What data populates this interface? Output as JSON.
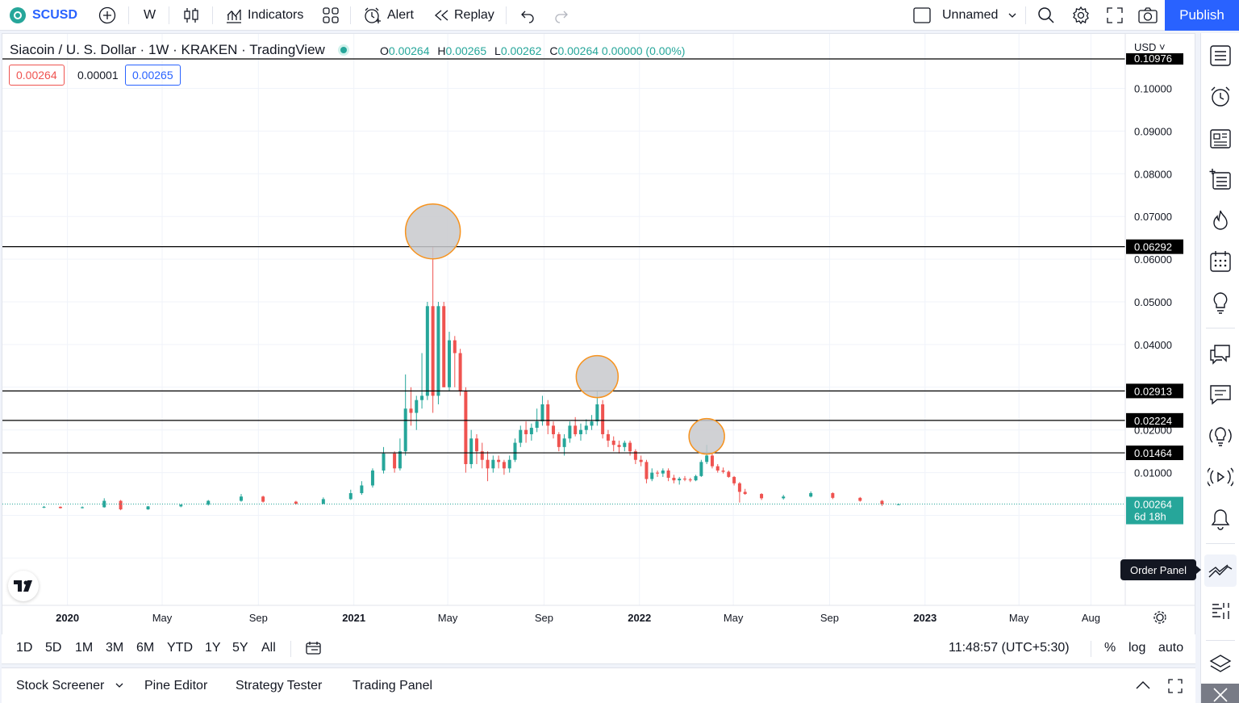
{
  "toolbar": {
    "symbol": "SCUSD",
    "interval": "W",
    "indicators_label": "Indicators",
    "alert_label": "Alert",
    "replay_label": "Replay",
    "layout_name": "Unnamed",
    "publish_label": "Publish"
  },
  "legend": {
    "title": "Siacoin / U. S. Dollar · 1W · KRAKEN · TradingView",
    "o_key": "O",
    "o_val": "0.00264",
    "h_key": "H",
    "h_val": "0.00265",
    "l_key": "L",
    "l_val": "0.00262",
    "c_key": "C",
    "c_val": "0.00264 0.00000 (0.00%)",
    "sell_price": "0.00264",
    "spread": "0.00001",
    "buy_price": "0.00265"
  },
  "price_scale": {
    "currency": "USD",
    "top_partial": "0.10976",
    "ticks": [
      "0.10000",
      "0.09000",
      "0.08000",
      "0.07000",
      "0.06000",
      "0.05000",
      "0.04000",
      "0.02000",
      "0.01000"
    ],
    "hline_labels": [
      "0.06292",
      "0.02913",
      "0.02224",
      "0.01464"
    ],
    "last_price": "0.00264",
    "countdown": "6d 18h"
  },
  "time_scale": {
    "labels": [
      "2020",
      "May",
      "Sep",
      "2021",
      "May",
      "Sep",
      "2022",
      "May",
      "Sep",
      "2023",
      "May",
      "Aug"
    ]
  },
  "ranges": {
    "buttons": [
      "1D",
      "5D",
      "1M",
      "3M",
      "6M",
      "YTD",
      "1Y",
      "5Y",
      "All"
    ],
    "clock": "11:48:57 (UTC+5:30)",
    "percent": "%",
    "log": "log",
    "auto": "auto"
  },
  "bottom_tabs": [
    "Stock Screener",
    "Pine Editor",
    "Strategy Tester",
    "Trading Panel"
  ],
  "tooltip": "Order Panel",
  "colors": {
    "up": "#26a69a",
    "down": "#ef5350",
    "accent": "#2962ff",
    "highlight_fill": "#c8c9cc",
    "highlight_stroke": "#f7931e"
  },
  "chart_data": {
    "type": "candlestick",
    "title": "Siacoin / U. S. Dollar · 1W · KRAKEN · TradingView",
    "ylim": [
      0,
      0.10976
    ],
    "x_range": [
      "2019-10",
      "2023-09"
    ],
    "horizontal_lines": [
      0.06292,
      0.02913,
      0.02224,
      0.01464
    ],
    "last_price": 0.00264,
    "highlights": [
      {
        "date": "2021-04-12",
        "price": 0.0665
      },
      {
        "date": "2021-11-08",
        "price": 0.0325
      },
      {
        "date": "2022-03-28",
        "price": 0.0185
      }
    ],
    "candles": [
      {
        "d": "2019-12-02",
        "o": 0.0019,
        "h": 0.0022,
        "l": 0.0017,
        "c": 0.002
      },
      {
        "d": "2019-12-23",
        "o": 0.002,
        "h": 0.0021,
        "l": 0.0016,
        "c": 0.0017
      },
      {
        "d": "2020-01-20",
        "o": 0.0017,
        "h": 0.0021,
        "l": 0.0016,
        "c": 0.0019
      },
      {
        "d": "2020-02-17",
        "o": 0.0019,
        "h": 0.004,
        "l": 0.0018,
        "c": 0.0034
      },
      {
        "d": "2020-03-09",
        "o": 0.0034,
        "h": 0.0036,
        "l": 0.0012,
        "c": 0.0014
      },
      {
        "d": "2020-04-13",
        "o": 0.0014,
        "h": 0.0022,
        "l": 0.0013,
        "c": 0.0021
      },
      {
        "d": "2020-05-25",
        "o": 0.0021,
        "h": 0.0026,
        "l": 0.0019,
        "c": 0.0025
      },
      {
        "d": "2020-06-29",
        "o": 0.0025,
        "h": 0.0036,
        "l": 0.0023,
        "c": 0.0034
      },
      {
        "d": "2020-08-10",
        "o": 0.0034,
        "h": 0.005,
        "l": 0.0032,
        "c": 0.0044
      },
      {
        "d": "2020-09-07",
        "o": 0.0044,
        "h": 0.0046,
        "l": 0.003,
        "c": 0.0032
      },
      {
        "d": "2020-10-19",
        "o": 0.0032,
        "h": 0.0034,
        "l": 0.0025,
        "c": 0.0027
      },
      {
        "d": "2020-11-23",
        "o": 0.0027,
        "h": 0.0042,
        "l": 0.0026,
        "c": 0.0038
      },
      {
        "d": "2020-12-28",
        "o": 0.0038,
        "h": 0.006,
        "l": 0.0036,
        "c": 0.0052
      },
      {
        "d": "2021-01-11",
        "o": 0.0052,
        "h": 0.008,
        "l": 0.0048,
        "c": 0.007
      },
      {
        "d": "2021-01-25",
        "o": 0.007,
        "h": 0.011,
        "l": 0.0065,
        "c": 0.0105
      },
      {
        "d": "2021-02-08",
        "o": 0.0105,
        "h": 0.016,
        "l": 0.0098,
        "c": 0.0145
      },
      {
        "d": "2021-02-22",
        "o": 0.0145,
        "h": 0.015,
        "l": 0.01,
        "c": 0.011
      },
      {
        "d": "2021-03-01",
        "o": 0.011,
        "h": 0.018,
        "l": 0.0105,
        "c": 0.015
      },
      {
        "d": "2021-03-08",
        "o": 0.015,
        "h": 0.033,
        "l": 0.014,
        "c": 0.025
      },
      {
        "d": "2021-03-15",
        "o": 0.025,
        "h": 0.03,
        "l": 0.021,
        "c": 0.024
      },
      {
        "d": "2021-03-22",
        "o": 0.024,
        "h": 0.028,
        "l": 0.02,
        "c": 0.027
      },
      {
        "d": "2021-03-29",
        "o": 0.027,
        "h": 0.038,
        "l": 0.025,
        "c": 0.028
      },
      {
        "d": "2021-04-05",
        "o": 0.028,
        "h": 0.05,
        "l": 0.027,
        "c": 0.049
      },
      {
        "d": "2021-04-12",
        "o": 0.049,
        "h": 0.0629,
        "l": 0.024,
        "c": 0.028
      },
      {
        "d": "2021-04-19",
        "o": 0.028,
        "h": 0.05,
        "l": 0.026,
        "c": 0.049
      },
      {
        "d": "2021-04-26",
        "o": 0.049,
        "h": 0.05,
        "l": 0.03,
        "c": 0.03
      },
      {
        "d": "2021-05-03",
        "o": 0.03,
        "h": 0.043,
        "l": 0.029,
        "c": 0.041
      },
      {
        "d": "2021-05-10",
        "o": 0.041,
        "h": 0.042,
        "l": 0.03,
        "c": 0.038
      },
      {
        "d": "2021-05-17",
        "o": 0.038,
        "h": 0.039,
        "l": 0.028,
        "c": 0.029
      },
      {
        "d": "2021-05-24",
        "o": 0.029,
        "h": 0.03,
        "l": 0.01,
        "c": 0.012
      },
      {
        "d": "2021-05-31",
        "o": 0.012,
        "h": 0.02,
        "l": 0.011,
        "c": 0.018
      },
      {
        "d": "2021-06-07",
        "o": 0.018,
        "h": 0.019,
        "l": 0.012,
        "c": 0.015
      },
      {
        "d": "2021-06-14",
        "o": 0.015,
        "h": 0.017,
        "l": 0.011,
        "c": 0.013
      },
      {
        "d": "2021-06-21",
        "o": 0.013,
        "h": 0.015,
        "l": 0.008,
        "c": 0.011
      },
      {
        "d": "2021-06-28",
        "o": 0.011,
        "h": 0.014,
        "l": 0.01,
        "c": 0.013
      },
      {
        "d": "2021-07-05",
        "o": 0.013,
        "h": 0.014,
        "l": 0.011,
        "c": 0.0125
      },
      {
        "d": "2021-07-12",
        "o": 0.0125,
        "h": 0.013,
        "l": 0.0095,
        "c": 0.011
      },
      {
        "d": "2021-07-19",
        "o": 0.011,
        "h": 0.014,
        "l": 0.01,
        "c": 0.013
      },
      {
        "d": "2021-07-26",
        "o": 0.013,
        "h": 0.018,
        "l": 0.0125,
        "c": 0.017
      },
      {
        "d": "2021-08-02",
        "o": 0.017,
        "h": 0.021,
        "l": 0.016,
        "c": 0.02
      },
      {
        "d": "2021-08-09",
        "o": 0.02,
        "h": 0.022,
        "l": 0.017,
        "c": 0.019
      },
      {
        "d": "2021-08-16",
        "o": 0.019,
        "h": 0.0215,
        "l": 0.0175,
        "c": 0.0205
      },
      {
        "d": "2021-08-23",
        "o": 0.0205,
        "h": 0.025,
        "l": 0.0195,
        "c": 0.022
      },
      {
        "d": "2021-08-30",
        "o": 0.022,
        "h": 0.028,
        "l": 0.021,
        "c": 0.026
      },
      {
        "d": "2021-09-06",
        "o": 0.026,
        "h": 0.027,
        "l": 0.019,
        "c": 0.021
      },
      {
        "d": "2021-09-13",
        "o": 0.021,
        "h": 0.022,
        "l": 0.018,
        "c": 0.019
      },
      {
        "d": "2021-09-20",
        "o": 0.019,
        "h": 0.0195,
        "l": 0.015,
        "c": 0.016
      },
      {
        "d": "2021-09-27",
        "o": 0.016,
        "h": 0.019,
        "l": 0.014,
        "c": 0.018
      },
      {
        "d": "2021-10-04",
        "o": 0.018,
        "h": 0.022,
        "l": 0.017,
        "c": 0.021
      },
      {
        "d": "2021-10-11",
        "o": 0.021,
        "h": 0.023,
        "l": 0.0185,
        "c": 0.019
      },
      {
        "d": "2021-10-18",
        "o": 0.019,
        "h": 0.0215,
        "l": 0.0175,
        "c": 0.02
      },
      {
        "d": "2021-10-25",
        "o": 0.02,
        "h": 0.0225,
        "l": 0.019,
        "c": 0.021
      },
      {
        "d": "2021-11-01",
        "o": 0.021,
        "h": 0.0235,
        "l": 0.02,
        "c": 0.022
      },
      {
        "d": "2021-11-08",
        "o": 0.022,
        "h": 0.0291,
        "l": 0.021,
        "c": 0.026
      },
      {
        "d": "2021-11-15",
        "o": 0.026,
        "h": 0.027,
        "l": 0.018,
        "c": 0.019
      },
      {
        "d": "2021-11-22",
        "o": 0.019,
        "h": 0.02,
        "l": 0.016,
        "c": 0.0175
      },
      {
        "d": "2021-11-29",
        "o": 0.0175,
        "h": 0.0185,
        "l": 0.015,
        "c": 0.0165
      },
      {
        "d": "2021-12-06",
        "o": 0.0165,
        "h": 0.0175,
        "l": 0.0145,
        "c": 0.016
      },
      {
        "d": "2021-12-13",
        "o": 0.016,
        "h": 0.0175,
        "l": 0.015,
        "c": 0.017
      },
      {
        "d": "2021-12-20",
        "o": 0.017,
        "h": 0.0175,
        "l": 0.014,
        "c": 0.015
      },
      {
        "d": "2021-12-27",
        "o": 0.015,
        "h": 0.0155,
        "l": 0.012,
        "c": 0.013
      },
      {
        "d": "2022-01-03",
        "o": 0.013,
        "h": 0.014,
        "l": 0.0115,
        "c": 0.0125
      },
      {
        "d": "2022-01-10",
        "o": 0.0125,
        "h": 0.013,
        "l": 0.0075,
        "c": 0.0085
      },
      {
        "d": "2022-01-17",
        "o": 0.0085,
        "h": 0.011,
        "l": 0.008,
        "c": 0.01
      },
      {
        "d": "2022-01-24",
        "o": 0.01,
        "h": 0.0105,
        "l": 0.009,
        "c": 0.0098
      },
      {
        "d": "2022-01-31",
        "o": 0.0098,
        "h": 0.011,
        "l": 0.009,
        "c": 0.0105
      },
      {
        "d": "2022-02-07",
        "o": 0.0105,
        "h": 0.011,
        "l": 0.008,
        "c": 0.0088
      },
      {
        "d": "2022-02-14",
        "o": 0.0088,
        "h": 0.0095,
        "l": 0.0075,
        "c": 0.0082
      },
      {
        "d": "2022-02-21",
        "o": 0.0082,
        "h": 0.009,
        "l": 0.0072,
        "c": 0.0086
      },
      {
        "d": "2022-02-28",
        "o": 0.0086,
        "h": 0.0092,
        "l": 0.008,
        "c": 0.0084
      },
      {
        "d": "2022-03-07",
        "o": 0.0084,
        "h": 0.0088,
        "l": 0.0078,
        "c": 0.0082
      },
      {
        "d": "2022-03-14",
        "o": 0.0082,
        "h": 0.0095,
        "l": 0.008,
        "c": 0.0092
      },
      {
        "d": "2022-03-21",
        "o": 0.0092,
        "h": 0.013,
        "l": 0.009,
        "c": 0.0125
      },
      {
        "d": "2022-03-28",
        "o": 0.0125,
        "h": 0.0165,
        "l": 0.012,
        "c": 0.014
      },
      {
        "d": "2022-04-04",
        "o": 0.014,
        "h": 0.0146,
        "l": 0.011,
        "c": 0.0115
      },
      {
        "d": "2022-04-11",
        "o": 0.0115,
        "h": 0.012,
        "l": 0.01,
        "c": 0.0105
      },
      {
        "d": "2022-04-18",
        "o": 0.0105,
        "h": 0.0112,
        "l": 0.0098,
        "c": 0.0102
      },
      {
        "d": "2022-04-25",
        "o": 0.0102,
        "h": 0.0105,
        "l": 0.0088,
        "c": 0.009
      },
      {
        "d": "2022-05-02",
        "o": 0.009,
        "h": 0.0092,
        "l": 0.007,
        "c": 0.0075
      },
      {
        "d": "2022-05-09",
        "o": 0.0075,
        "h": 0.0078,
        "l": 0.003,
        "c": 0.0055
      },
      {
        "d": "2022-05-16",
        "o": 0.0055,
        "h": 0.0062,
        "l": 0.0048,
        "c": 0.005
      },
      {
        "d": "2022-06-06",
        "o": 0.005,
        "h": 0.0052,
        "l": 0.0036,
        "c": 0.004
      },
      {
        "d": "2022-07-04",
        "o": 0.004,
        "h": 0.0048,
        "l": 0.0037,
        "c": 0.0044
      },
      {
        "d": "2022-08-08",
        "o": 0.0044,
        "h": 0.0056,
        "l": 0.0042,
        "c": 0.0052
      },
      {
        "d": "2022-09-05",
        "o": 0.0052,
        "h": 0.0054,
        "l": 0.0038,
        "c": 0.0041
      },
      {
        "d": "2022-10-10",
        "o": 0.0041,
        "h": 0.0043,
        "l": 0.0032,
        "c": 0.0034
      },
      {
        "d": "2022-11-07",
        "o": 0.0034,
        "h": 0.0036,
        "l": 0.0022,
        "c": 0.0026
      },
      {
        "d": "2022-11-28",
        "o": 0.0026,
        "h": 0.0028,
        "l": 0.0024,
        "c": 0.0026
      }
    ]
  }
}
